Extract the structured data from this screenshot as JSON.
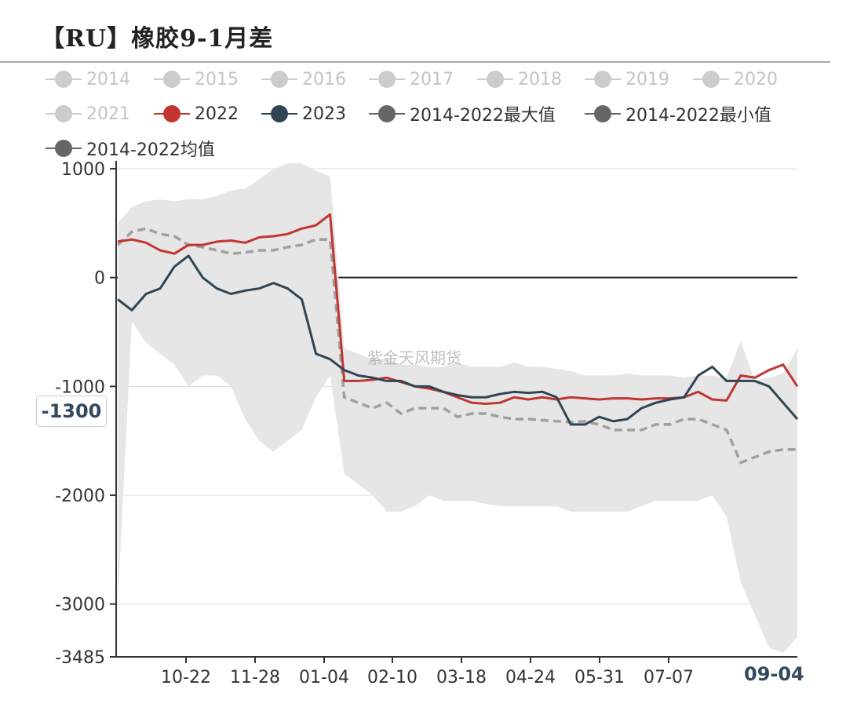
{
  "title": "【RU】橡胶9-1月差",
  "watermark": "紫金天风期货",
  "current_value_badge": "-1300",
  "end_date_badge": "09-04",
  "legend": [
    {
      "label": "2014",
      "color": "#cccccc"
    },
    {
      "label": "2015",
      "color": "#cccccc"
    },
    {
      "label": "2016",
      "color": "#cccccc"
    },
    {
      "label": "2017",
      "color": "#cccccc"
    },
    {
      "label": "2018",
      "color": "#cccccc"
    },
    {
      "label": "2019",
      "color": "#cccccc"
    },
    {
      "label": "2020",
      "color": "#cccccc"
    },
    {
      "label": "2021",
      "color": "#cccccc"
    },
    {
      "label": "2022",
      "color": "#c23531"
    },
    {
      "label": "2023",
      "color": "#2f4554"
    },
    {
      "label": "2014-2022最大值",
      "color": "#666666"
    },
    {
      "label": "2014-2022最小值",
      "color": "#666666"
    },
    {
      "label": "2014-2022均值",
      "color": "#666666"
    }
  ],
  "chart_data": {
    "type": "line",
    "title": "【RU】橡胶9-1月差",
    "xlabel": "",
    "ylabel": "",
    "x_ticks": [
      "10-22",
      "11-28",
      "01-04",
      "02-10",
      "03-18",
      "04-24",
      "05-31",
      "07-07",
      "09-04"
    ],
    "y_ticks": [
      1000,
      0,
      -1000,
      -2000,
      -3000,
      -3485
    ],
    "ylim": [
      -3485,
      1100
    ],
    "x": [
      "09-15",
      "09-22",
      "09-29",
      "10-06",
      "10-13",
      "10-22",
      "10-29",
      "11-05",
      "11-12",
      "11-19",
      "11-28",
      "12-05",
      "12-12",
      "12-19",
      "12-27",
      "01-04",
      "01-11",
      "01-18",
      "01-25",
      "02-01",
      "02-10",
      "02-17",
      "02-24",
      "03-03",
      "03-10",
      "03-18",
      "03-25",
      "04-01",
      "04-08",
      "04-15",
      "04-24",
      "05-01",
      "05-08",
      "05-15",
      "05-22",
      "05-31",
      "06-07",
      "06-14",
      "06-21",
      "06-28",
      "07-07",
      "07-14",
      "07-21",
      "07-28",
      "08-05",
      "08-13",
      "08-21",
      "08-28",
      "09-04"
    ],
    "band": {
      "name": "2014-2022",
      "max": [
        500,
        650,
        700,
        720,
        700,
        720,
        720,
        750,
        800,
        820,
        900,
        1000,
        1050,
        1050,
        980,
        930,
        -650,
        -700,
        -750,
        -750,
        -800,
        -800,
        -820,
        -820,
        -780,
        -820,
        -820,
        -820,
        -780,
        -820,
        -820,
        -840,
        -860,
        -900,
        -900,
        -900,
        -880,
        -900,
        -900,
        -900,
        -920,
        -900,
        -900,
        -920,
        -580,
        -950,
        -920,
        -880,
        -650
      ],
      "min": [
        -3000,
        -400,
        -600,
        -700,
        -800,
        -1000,
        -900,
        -900,
        -1000,
        -1300,
        -1500,
        -1600,
        -1500,
        -1400,
        -1100,
        -900,
        -1800,
        -1900,
        -2000,
        -2150,
        -2150,
        -2100,
        -2000,
        -2050,
        -2050,
        -2050,
        -2080,
        -2100,
        -2100,
        -2100,
        -2100,
        -2100,
        -2150,
        -2150,
        -2150,
        -2150,
        -2150,
        -2100,
        -2050,
        -2050,
        -2050,
        -2050,
        -2000,
        -2200,
        -2800,
        -3100,
        -3400,
        -3450,
        -3300
      ],
      "mean": [
        300,
        420,
        450,
        400,
        380,
        300,
        280,
        250,
        220,
        230,
        250,
        250,
        280,
        300,
        350,
        350,
        -1100,
        -1150,
        -1200,
        -1150,
        -1250,
        -1200,
        -1200,
        -1200,
        -1280,
        -1250,
        -1250,
        -1280,
        -1300,
        -1300,
        -1310,
        -1320,
        -1330,
        -1320,
        -1350,
        -1400,
        -1400,
        -1400,
        -1350,
        -1350,
        -1300,
        -1300,
        -1350,
        -1400,
        -1700,
        -1650,
        -1600,
        -1580,
        -1580
      ]
    },
    "series": [
      {
        "name": "2022",
        "color": "#c23531",
        "values": [
          330,
          350,
          320,
          250,
          220,
          300,
          300,
          330,
          340,
          320,
          370,
          380,
          400,
          450,
          480,
          580,
          -950,
          -950,
          -940,
          -920,
          -960,
          -1000,
          -1020,
          -1050,
          -1100,
          -1150,
          -1160,
          -1150,
          -1100,
          -1120,
          -1100,
          -1120,
          -1100,
          -1110,
          -1120,
          -1110,
          -1110,
          -1120,
          -1110,
          -1110,
          -1100,
          -1050,
          -1120,
          -1130,
          -900,
          -920,
          -850,
          -800,
          -1000
        ]
      },
      {
        "name": "2023",
        "color": "#2f4554",
        "values": [
          -200,
          -300,
          -150,
          -100,
          100,
          200,
          0,
          -100,
          -150,
          -120,
          -100,
          -50,
          -100,
          -200,
          -700,
          -750,
          -850,
          -900,
          -920,
          -950,
          -950,
          -1000,
          -1000,
          -1050,
          -1080,
          -1100,
          -1100,
          -1070,
          -1050,
          -1060,
          -1050,
          -1100,
          -1350,
          -1350,
          -1280,
          -1320,
          -1300,
          -1200,
          -1150,
          -1120,
          -1100,
          -900,
          -820,
          -950,
          -950,
          -950,
          -1000,
          -1150,
          -1300
        ]
      }
    ],
    "grid": true,
    "legend_position": "top"
  }
}
